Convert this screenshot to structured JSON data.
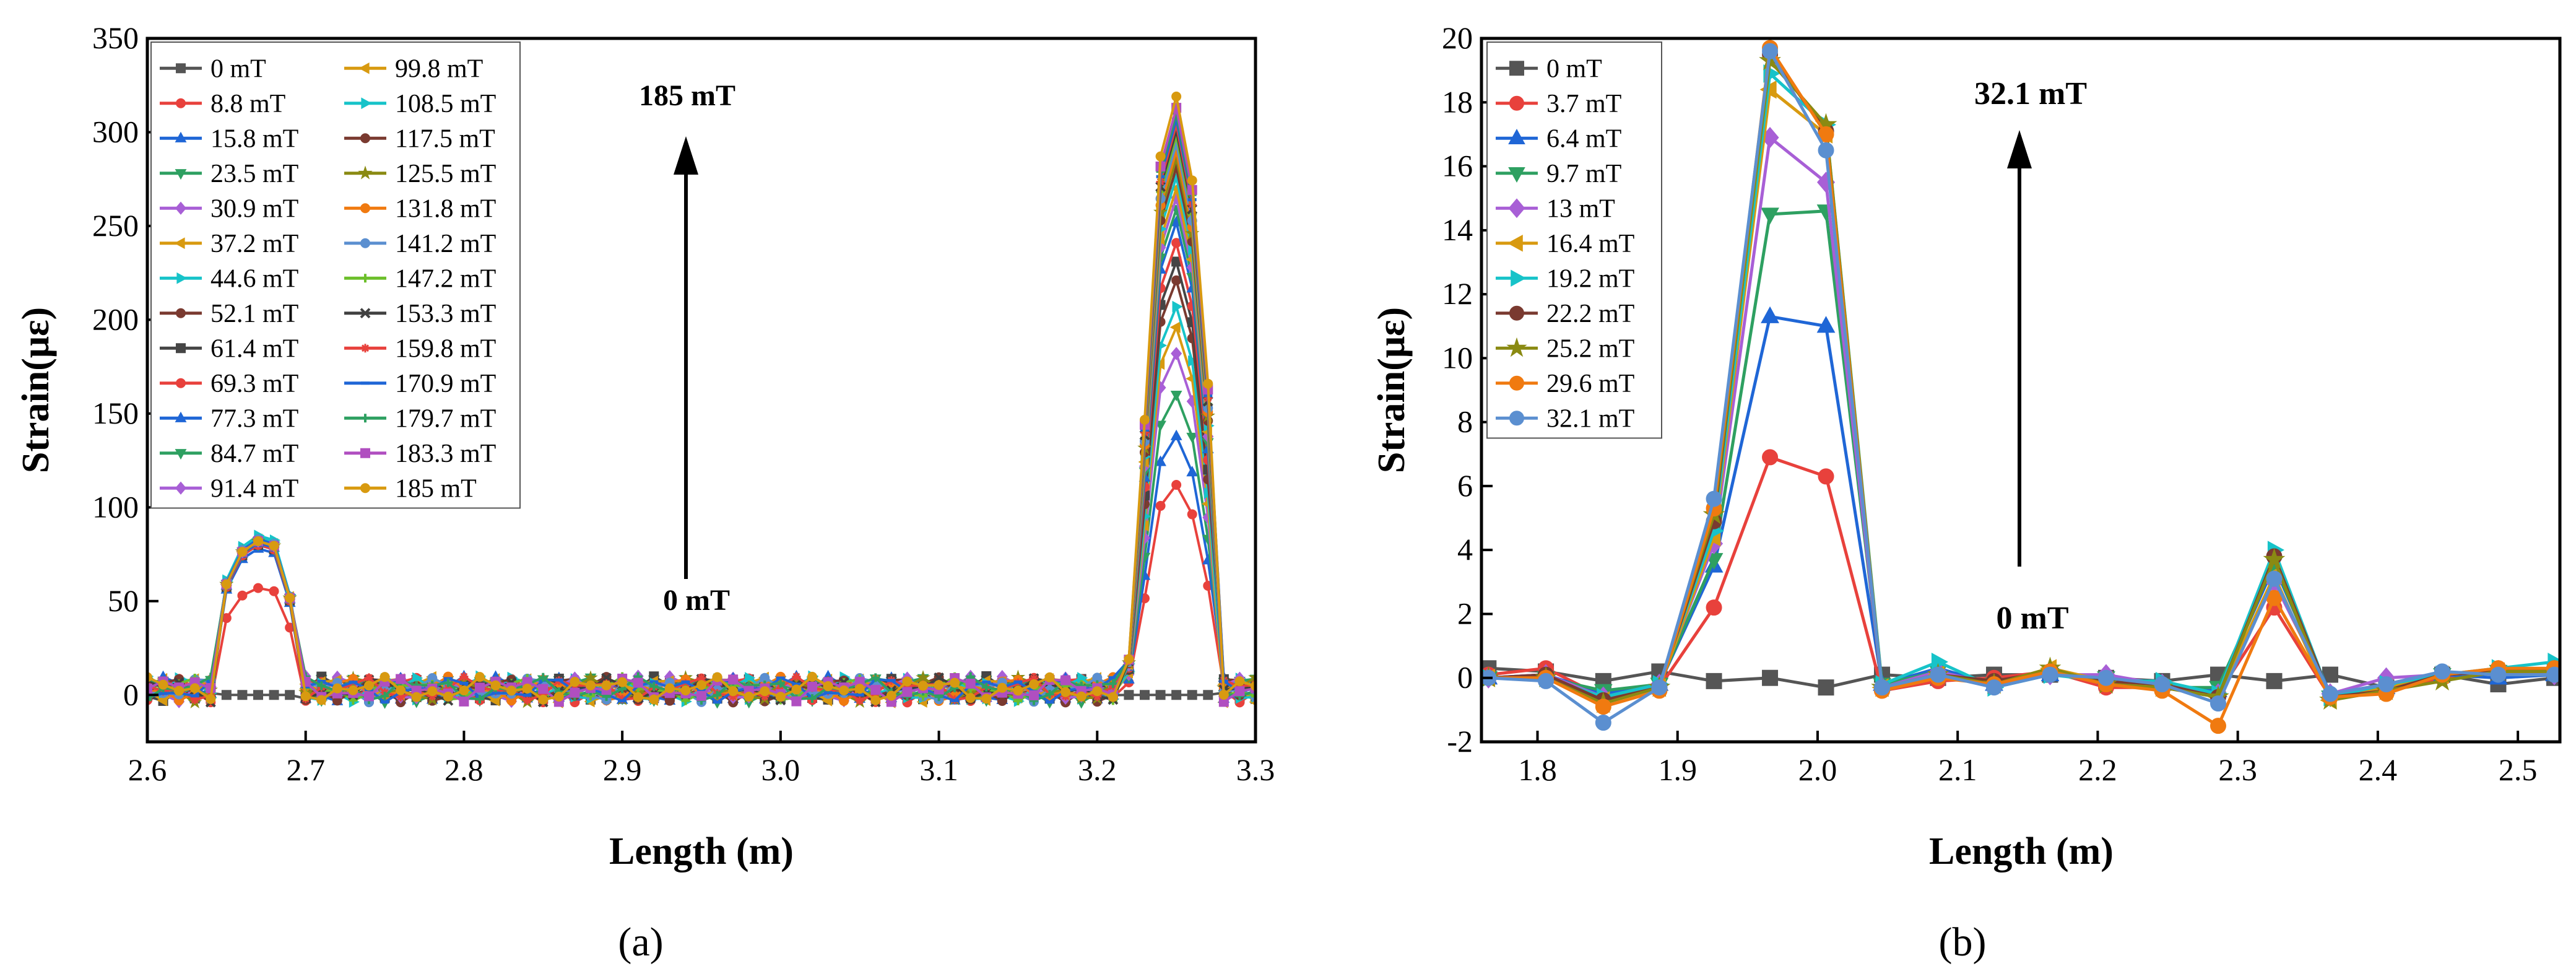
{
  "chart_data": [
    {
      "type": "line",
      "panel_label": "(a)",
      "xlabel": "Length (m)",
      "ylabel": "Strain(με)",
      "xlim": [
        2.6,
        3.3
      ],
      "ylim": [
        -25,
        350
      ],
      "xticks": [
        "2.6",
        "2.7",
        "2.8",
        "2.9",
        "3.0",
        "3.1",
        "3.2",
        "3.3"
      ],
      "yticks": [
        "0",
        "50",
        "100",
        "150",
        "200",
        "250",
        "300",
        "350"
      ],
      "legend_position": "top-left",
      "annotation_top": "185 mT",
      "annotation_bottom": "0 mT",
      "x": [
        2.6,
        2.61,
        2.62,
        2.63,
        2.64,
        2.65,
        2.66,
        2.67,
        2.68,
        2.69,
        2.7,
        2.71,
        2.72,
        2.73,
        2.74,
        2.75,
        2.76,
        2.77,
        2.78,
        2.79,
        2.8,
        2.81,
        2.82,
        2.83,
        2.84,
        2.85,
        2.86,
        2.87,
        2.88,
        2.89,
        2.9,
        2.91,
        2.92,
        2.93,
        2.94,
        2.95,
        2.96,
        2.97,
        2.98,
        2.99,
        3.0,
        3.01,
        3.02,
        3.03,
        3.04,
        3.05,
        3.06,
        3.07,
        3.08,
        3.09,
        3.1,
        3.11,
        3.12,
        3.13,
        3.14,
        3.15,
        3.16,
        3.17,
        3.18,
        3.19,
        3.2,
        3.21,
        3.22,
        3.23,
        3.24,
        3.25,
        3.26,
        3.27,
        3.28,
        3.29,
        3.3
      ],
      "series": [
        {
          "name": "0 mT",
          "color": "#555555",
          "marker": "square",
          "peak1": 0,
          "peak2": 0
        },
        {
          "name": "8.8 mT",
          "color": "#e8413c",
          "marker": "circle",
          "peak1": 57,
          "peak2": 112
        },
        {
          "name": "15.8 mT",
          "color": "#1f66d6",
          "marker": "triangle-up",
          "peak1": 78,
          "peak2": 138
        },
        {
          "name": "23.5 mT",
          "color": "#2ea061",
          "marker": "triangle-down",
          "peak1": 80,
          "peak2": 160
        },
        {
          "name": "30.9 mT",
          "color": "#a85fd6",
          "marker": "diamond",
          "peak1": 81,
          "peak2": 182
        },
        {
          "name": "37.2 mT",
          "color": "#d89a10",
          "marker": "triangle-left",
          "peak1": 82,
          "peak2": 196
        },
        {
          "name": "44.6 mT",
          "color": "#17c3c9",
          "marker": "triangle-right",
          "peak1": 84,
          "peak2": 207
        },
        {
          "name": "52.1 mT",
          "color": "#7a3a30",
          "marker": "circle",
          "peak1": 81,
          "peak2": 221
        },
        {
          "name": "61.4 mT",
          "color": "#454545",
          "marker": "square",
          "peak1": 80,
          "peak2": 231
        },
        {
          "name": "69.3 mT",
          "color": "#e8413c",
          "marker": "circle",
          "peak1": 80,
          "peak2": 241
        },
        {
          "name": "77.3 mT",
          "color": "#1f66d6",
          "marker": "triangle-up",
          "peak1": 81,
          "peak2": 252
        },
        {
          "name": "84.7 mT",
          "color": "#2ea061",
          "marker": "triangle-down",
          "peak1": 82,
          "peak2": 259
        },
        {
          "name": "91.4 mT",
          "color": "#a85fd6",
          "marker": "diamond",
          "peak1": 82,
          "peak2": 265
        },
        {
          "name": "99.8 mT",
          "color": "#d89a10",
          "marker": "triangle-left",
          "peak1": 83,
          "peak2": 270
        },
        {
          "name": "108.5 mT",
          "color": "#17c3c9",
          "marker": "triangle-right",
          "peak1": 85,
          "peak2": 276
        },
        {
          "name": "117.5 mT",
          "color": "#7a3a30",
          "marker": "circle",
          "peak1": 83,
          "peak2": 281
        },
        {
          "name": "125.5 mT",
          "color": "#8a8a12",
          "marker": "star",
          "peak1": 82,
          "peak2": 286
        },
        {
          "name": "131.8 mT",
          "color": "#f07a10",
          "marker": "circle",
          "peak1": 82,
          "peak2": 290
        },
        {
          "name": "141.2 mT",
          "color": "#5b8fd0",
          "marker": "circle",
          "peak1": 83,
          "peak2": 294
        },
        {
          "name": "147.2 mT",
          "color": "#6cbf2a",
          "marker": "plus",
          "peak1": 82,
          "peak2": 298
        },
        {
          "name": "153.3 mT",
          "color": "#404040",
          "marker": "x",
          "peak1": 82,
          "peak2": 301
        },
        {
          "name": "159.8 mT",
          "color": "#e8413c",
          "marker": "asterisk",
          "peak1": 82,
          "peak2": 304
        },
        {
          "name": "170.9 mT",
          "color": "#1f66d6",
          "marker": "dash",
          "peak1": 83,
          "peak2": 307
        },
        {
          "name": "179.7 mT",
          "color": "#2ea061",
          "marker": "plus",
          "peak1": 82,
          "peak2": 310
        },
        {
          "name": "183.3 mT",
          "color": "#b04fc0",
          "marker": "square",
          "peak1": 82,
          "peak2": 313
        },
        {
          "name": "185 mT",
          "color": "#d89a10",
          "marker": "circle",
          "peak1": 82,
          "peak2": 319
        }
      ]
    },
    {
      "type": "line",
      "panel_label": "(b)",
      "xlabel": "Length (m)",
      "ylabel": "Strain(με)",
      "xlim": [
        1.76,
        2.53
      ],
      "ylim": [
        -2,
        20
      ],
      "xticks": [
        "1.8",
        "1.9",
        "2.0",
        "2.1",
        "2.2",
        "2.3",
        "2.4",
        "2.5"
      ],
      "yticks": [
        "-2",
        "0",
        "2",
        "4",
        "6",
        "8",
        "10",
        "12",
        "14",
        "16",
        "18",
        "20"
      ],
      "legend_position": "top-left",
      "annotation_top": "32.1 mT",
      "annotation_bottom": "0 mT",
      "x": [
        1.765,
        1.806,
        1.847,
        1.887,
        1.926,
        1.966,
        2.006,
        2.046,
        2.086,
        2.126,
        2.166,
        2.206,
        2.246,
        2.286,
        2.326,
        2.366,
        2.406,
        2.446,
        2.486,
        2.526
      ],
      "series": [
        {
          "name": "0 mT",
          "color": "#555555",
          "marker": "square",
          "values": [
            0.3,
            0.2,
            -0.1,
            0.2,
            -0.1,
            0.0,
            -0.3,
            0.1,
            0.0,
            0.1,
            0.1,
            0.0,
            -0.1,
            0.1,
            -0.1,
            0.1,
            -0.3,
            0.1,
            -0.2,
            0.0
          ]
        },
        {
          "name": "3.7 mT",
          "color": "#e8413c",
          "marker": "circle",
          "values": [
            0.1,
            0.3,
            -0.6,
            -0.3,
            2.2,
            6.9,
            6.3,
            -0.4,
            -0.1,
            0.0,
            0.2,
            -0.3,
            -0.3,
            -0.5,
            2.2,
            -0.6,
            -0.4,
            0.0,
            0.3,
            0.2
          ]
        },
        {
          "name": "6.4 mT",
          "color": "#1f66d6",
          "marker": "triangle-up",
          "values": [
            0.0,
            0.1,
            -0.5,
            -0.2,
            3.5,
            11.3,
            11.0,
            -0.2,
            0.3,
            -0.2,
            0.1,
            0.0,
            -0.2,
            -0.4,
            3.5,
            -0.5,
            -0.3,
            0.1,
            0.0,
            0.1
          ]
        },
        {
          "name": "9.7 mT",
          "color": "#2ea061",
          "marker": "triangle-down",
          "values": [
            0.0,
            0.0,
            -0.4,
            -0.2,
            3.7,
            14.5,
            14.6,
            -0.2,
            0.2,
            -0.2,
            0.1,
            0.0,
            -0.3,
            -0.3,
            3.6,
            -0.6,
            -0.4,
            0.1,
            0.2,
            0.3
          ]
        },
        {
          "name": "13 mT",
          "color": "#a85fd6",
          "marker": "diamond",
          "values": [
            0.0,
            0.1,
            -0.6,
            -0.2,
            4.2,
            16.9,
            15.5,
            -0.3,
            0.2,
            -0.2,
            0.1,
            0.1,
            -0.2,
            -0.5,
            3.0,
            -0.5,
            0.0,
            0.1,
            0.2,
            0.1
          ]
        },
        {
          "name": "16.4 mT",
          "color": "#d89a10",
          "marker": "triangle-left",
          "values": [
            0.0,
            0.0,
            -0.7,
            -0.3,
            4.4,
            18.4,
            17.0,
            -0.3,
            0.1,
            -0.2,
            0.3,
            -0.1,
            -0.3,
            -0.6,
            3.2,
            -0.7,
            -0.3,
            0.1,
            0.2,
            0.2
          ]
        },
        {
          "name": "19.2 mT",
          "color": "#17c3c9",
          "marker": "triangle-right",
          "values": [
            0.0,
            0.0,
            -0.6,
            -0.2,
            4.6,
            18.9,
            17.3,
            -0.2,
            0.5,
            -0.3,
            0.1,
            -0.1,
            -0.1,
            -0.5,
            4.0,
            -0.6,
            -0.2,
            0.1,
            0.3,
            0.5
          ]
        },
        {
          "name": "22.2 mT",
          "color": "#7a3a30",
          "marker": "circle",
          "values": [
            0.0,
            0.1,
            -0.7,
            -0.3,
            4.9,
            19.5,
            17.1,
            -0.3,
            0.1,
            -0.1,
            0.2,
            -0.1,
            -0.2,
            -0.6,
            3.8,
            -0.6,
            -0.4,
            0.1,
            0.2,
            0.3
          ]
        },
        {
          "name": "25.2 mT",
          "color": "#8a8a12",
          "marker": "star",
          "values": [
            0.0,
            0.0,
            -0.8,
            -0.3,
            5.1,
            19.3,
            17.3,
            -0.3,
            0.1,
            -0.2,
            0.3,
            -0.2,
            -0.3,
            -0.6,
            3.7,
            -0.7,
            -0.4,
            -0.1,
            0.2,
            0.2
          ]
        },
        {
          "name": "29.6 mT",
          "color": "#f07a10",
          "marker": "circle",
          "values": [
            0.0,
            0.0,
            -0.9,
            -0.4,
            5.3,
            19.7,
            17.0,
            -0.4,
            0.0,
            -0.2,
            0.2,
            -0.2,
            -0.4,
            -1.5,
            2.5,
            -0.6,
            -0.5,
            0.1,
            0.3,
            0.3
          ]
        },
        {
          "name": "32.1 mT",
          "color": "#5b8fd0",
          "marker": "circle",
          "values": [
            0.0,
            -0.1,
            -1.4,
            -0.3,
            5.6,
            19.6,
            16.5,
            -0.3,
            0.1,
            -0.3,
            0.1,
            0.0,
            -0.2,
            -0.8,
            3.1,
            -0.5,
            -0.2,
            0.2,
            0.1,
            0.1
          ]
        }
      ]
    }
  ]
}
